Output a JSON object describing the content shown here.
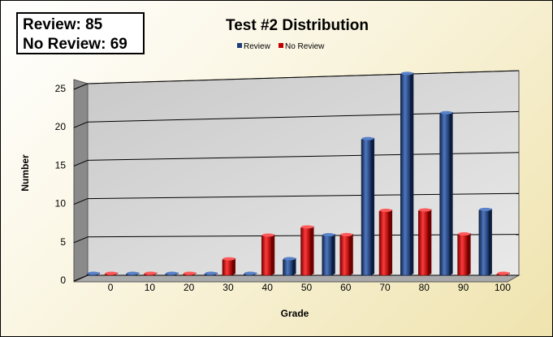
{
  "stats": {
    "review_line": "Review: 85",
    "no_review_line": "No Review: 69"
  },
  "chart_data": {
    "type": "bar",
    "title": "Test #2 Distribution",
    "xlabel": "Grade",
    "ylabel": "Number",
    "categories": [
      "0",
      "10",
      "20",
      "30",
      "40",
      "50",
      "60",
      "70",
      "80",
      "90",
      "100"
    ],
    "series": [
      {
        "name": "Review",
        "color": "#1f3f7a",
        "values": [
          0,
          0,
          0,
          0,
          0,
          2,
          5,
          17,
          25,
          20,
          8
        ]
      },
      {
        "name": "No Review",
        "color": "#c00000",
        "values": [
          0,
          0,
          0,
          2,
          5,
          6,
          5,
          8,
          8,
          5,
          0
        ]
      }
    ],
    "ylim": [
      0,
      25
    ],
    "yticks": [
      0,
      5,
      10,
      15,
      20,
      25
    ],
    "grid": true,
    "legend": "top-center",
    "style": "3d-clustered-column"
  }
}
